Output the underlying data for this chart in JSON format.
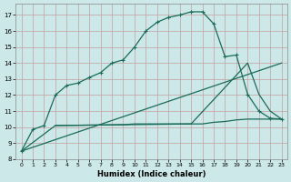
{
  "xlabel": "Humidex (Indice chaleur)",
  "bg_color": "#cce8e8",
  "grid_color": "#c4a0a0",
  "line_color": "#1a6b5a",
  "xlim": [
    -0.5,
    23.5
  ],
  "ylim": [
    8,
    17.7
  ],
  "xticks": [
    0,
    1,
    2,
    3,
    4,
    5,
    6,
    7,
    8,
    9,
    10,
    11,
    12,
    13,
    14,
    15,
    16,
    17,
    18,
    19,
    20,
    21,
    22,
    23
  ],
  "yticks": [
    8,
    9,
    10,
    11,
    12,
    13,
    14,
    15,
    16,
    17
  ],
  "line1_x": [
    0,
    1,
    2,
    3,
    4,
    5,
    6,
    7,
    8,
    9,
    10,
    11,
    12,
    13,
    14,
    15,
    16,
    17,
    18,
    19,
    20,
    21,
    22,
    23
  ],
  "line1_y": [
    8.5,
    9.85,
    10.1,
    12.0,
    12.6,
    12.75,
    13.1,
    13.4,
    14.0,
    14.2,
    15.0,
    16.0,
    16.55,
    16.85,
    17.0,
    17.2,
    17.2,
    16.45,
    14.4,
    14.5,
    12.05,
    11.0,
    10.55,
    10.5
  ],
  "line2_x": [
    0,
    3,
    15,
    20,
    21,
    22,
    23
  ],
  "line2_y": [
    8.5,
    10.1,
    10.2,
    14.0,
    12.05,
    11.0,
    10.5
  ],
  "line3_x": [
    0,
    23
  ],
  "line3_y": [
    8.5,
    14.0
  ],
  "line4_x": [
    3,
    9,
    10,
    11,
    12,
    13,
    14,
    15,
    16,
    17,
    18,
    19,
    20,
    21,
    22,
    23
  ],
  "line4_y": [
    10.1,
    10.15,
    10.2,
    10.2,
    10.2,
    10.2,
    10.2,
    10.2,
    10.2,
    10.3,
    10.35,
    10.45,
    10.5,
    10.5,
    10.5,
    10.5
  ]
}
